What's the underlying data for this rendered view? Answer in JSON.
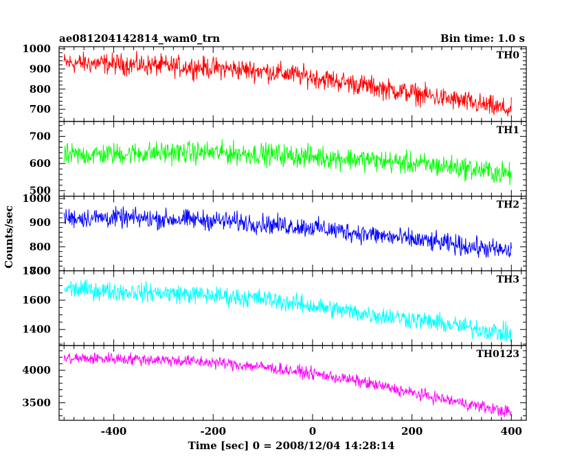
{
  "header": {
    "title": "ae081204142814_wam0_trn",
    "bin_time": "Bin time: 1.0 s"
  },
  "chart_data": {
    "type": "line",
    "xlabel": "Time [sec] 0 = 2008/12/04 14:28:14",
    "ylabel": "Counts/sec",
    "xlim": [
      -510,
      430
    ],
    "x_ticks": [
      -400,
      -200,
      0,
      200,
      400
    ],
    "x_minor_step": 20,
    "grid": false,
    "panels": [
      {
        "name": "TH0",
        "color": "#ff0000",
        "ylim": [
          640,
          1010
        ],
        "y_ticks": [
          700,
          800,
          900,
          1000
        ],
        "y_minor_step": 20,
        "noise": 45,
        "x": [
          -500,
          -400,
          -300,
          -200,
          -100,
          0,
          100,
          200,
          300,
          400
        ],
        "y": [
          930,
          925,
          915,
          905,
          890,
          860,
          820,
          780,
          740,
          695
        ]
      },
      {
        "name": "TH1",
        "color": "#00ff00",
        "ylim": [
          480,
          755
        ],
        "y_ticks": [
          500,
          600,
          700
        ],
        "y_minor_step": 20,
        "noise": 35,
        "x": [
          -500,
          -400,
          -300,
          -200,
          -100,
          0,
          100,
          200,
          300,
          400
        ],
        "y": [
          630,
          635,
          640,
          640,
          635,
          625,
          615,
          600,
          585,
          560
        ]
      },
      {
        "name": "TH2",
        "color": "#0000ff",
        "ylim": [
          700,
          1010
        ],
        "y_ticks": [
          700,
          800,
          900,
          1000
        ],
        "y_minor_step": 20,
        "noise": 35,
        "x": [
          -500,
          -400,
          -300,
          -200,
          -100,
          0,
          100,
          200,
          300,
          400
        ],
        "y": [
          920,
          920,
          915,
          910,
          895,
          880,
          855,
          830,
          805,
          780
        ]
      },
      {
        "name": "TH3",
        "color": "#00ffff",
        "ylim": [
          1290,
          1800
        ],
        "y_ticks": [
          1400,
          1600,
          1800
        ],
        "y_minor_step": 50,
        "noise": 55,
        "x": [
          -500,
          -400,
          -300,
          -200,
          -100,
          0,
          100,
          200,
          300,
          400
        ],
        "y": [
          1680,
          1660,
          1650,
          1630,
          1610,
          1560,
          1510,
          1470,
          1420,
          1370
        ]
      },
      {
        "name": "TH0123",
        "color": "#ff00ff",
        "ylim": [
          3230,
          4380
        ],
        "y_ticks": [
          3500,
          4000
        ],
        "y_minor_step": 100,
        "noise": 80,
        "x": [
          -500,
          -400,
          -300,
          -200,
          -100,
          0,
          100,
          200,
          300,
          400
        ],
        "y": [
          4180,
          4180,
          4160,
          4120,
          4050,
          3950,
          3820,
          3650,
          3500,
          3350
        ]
      }
    ]
  }
}
